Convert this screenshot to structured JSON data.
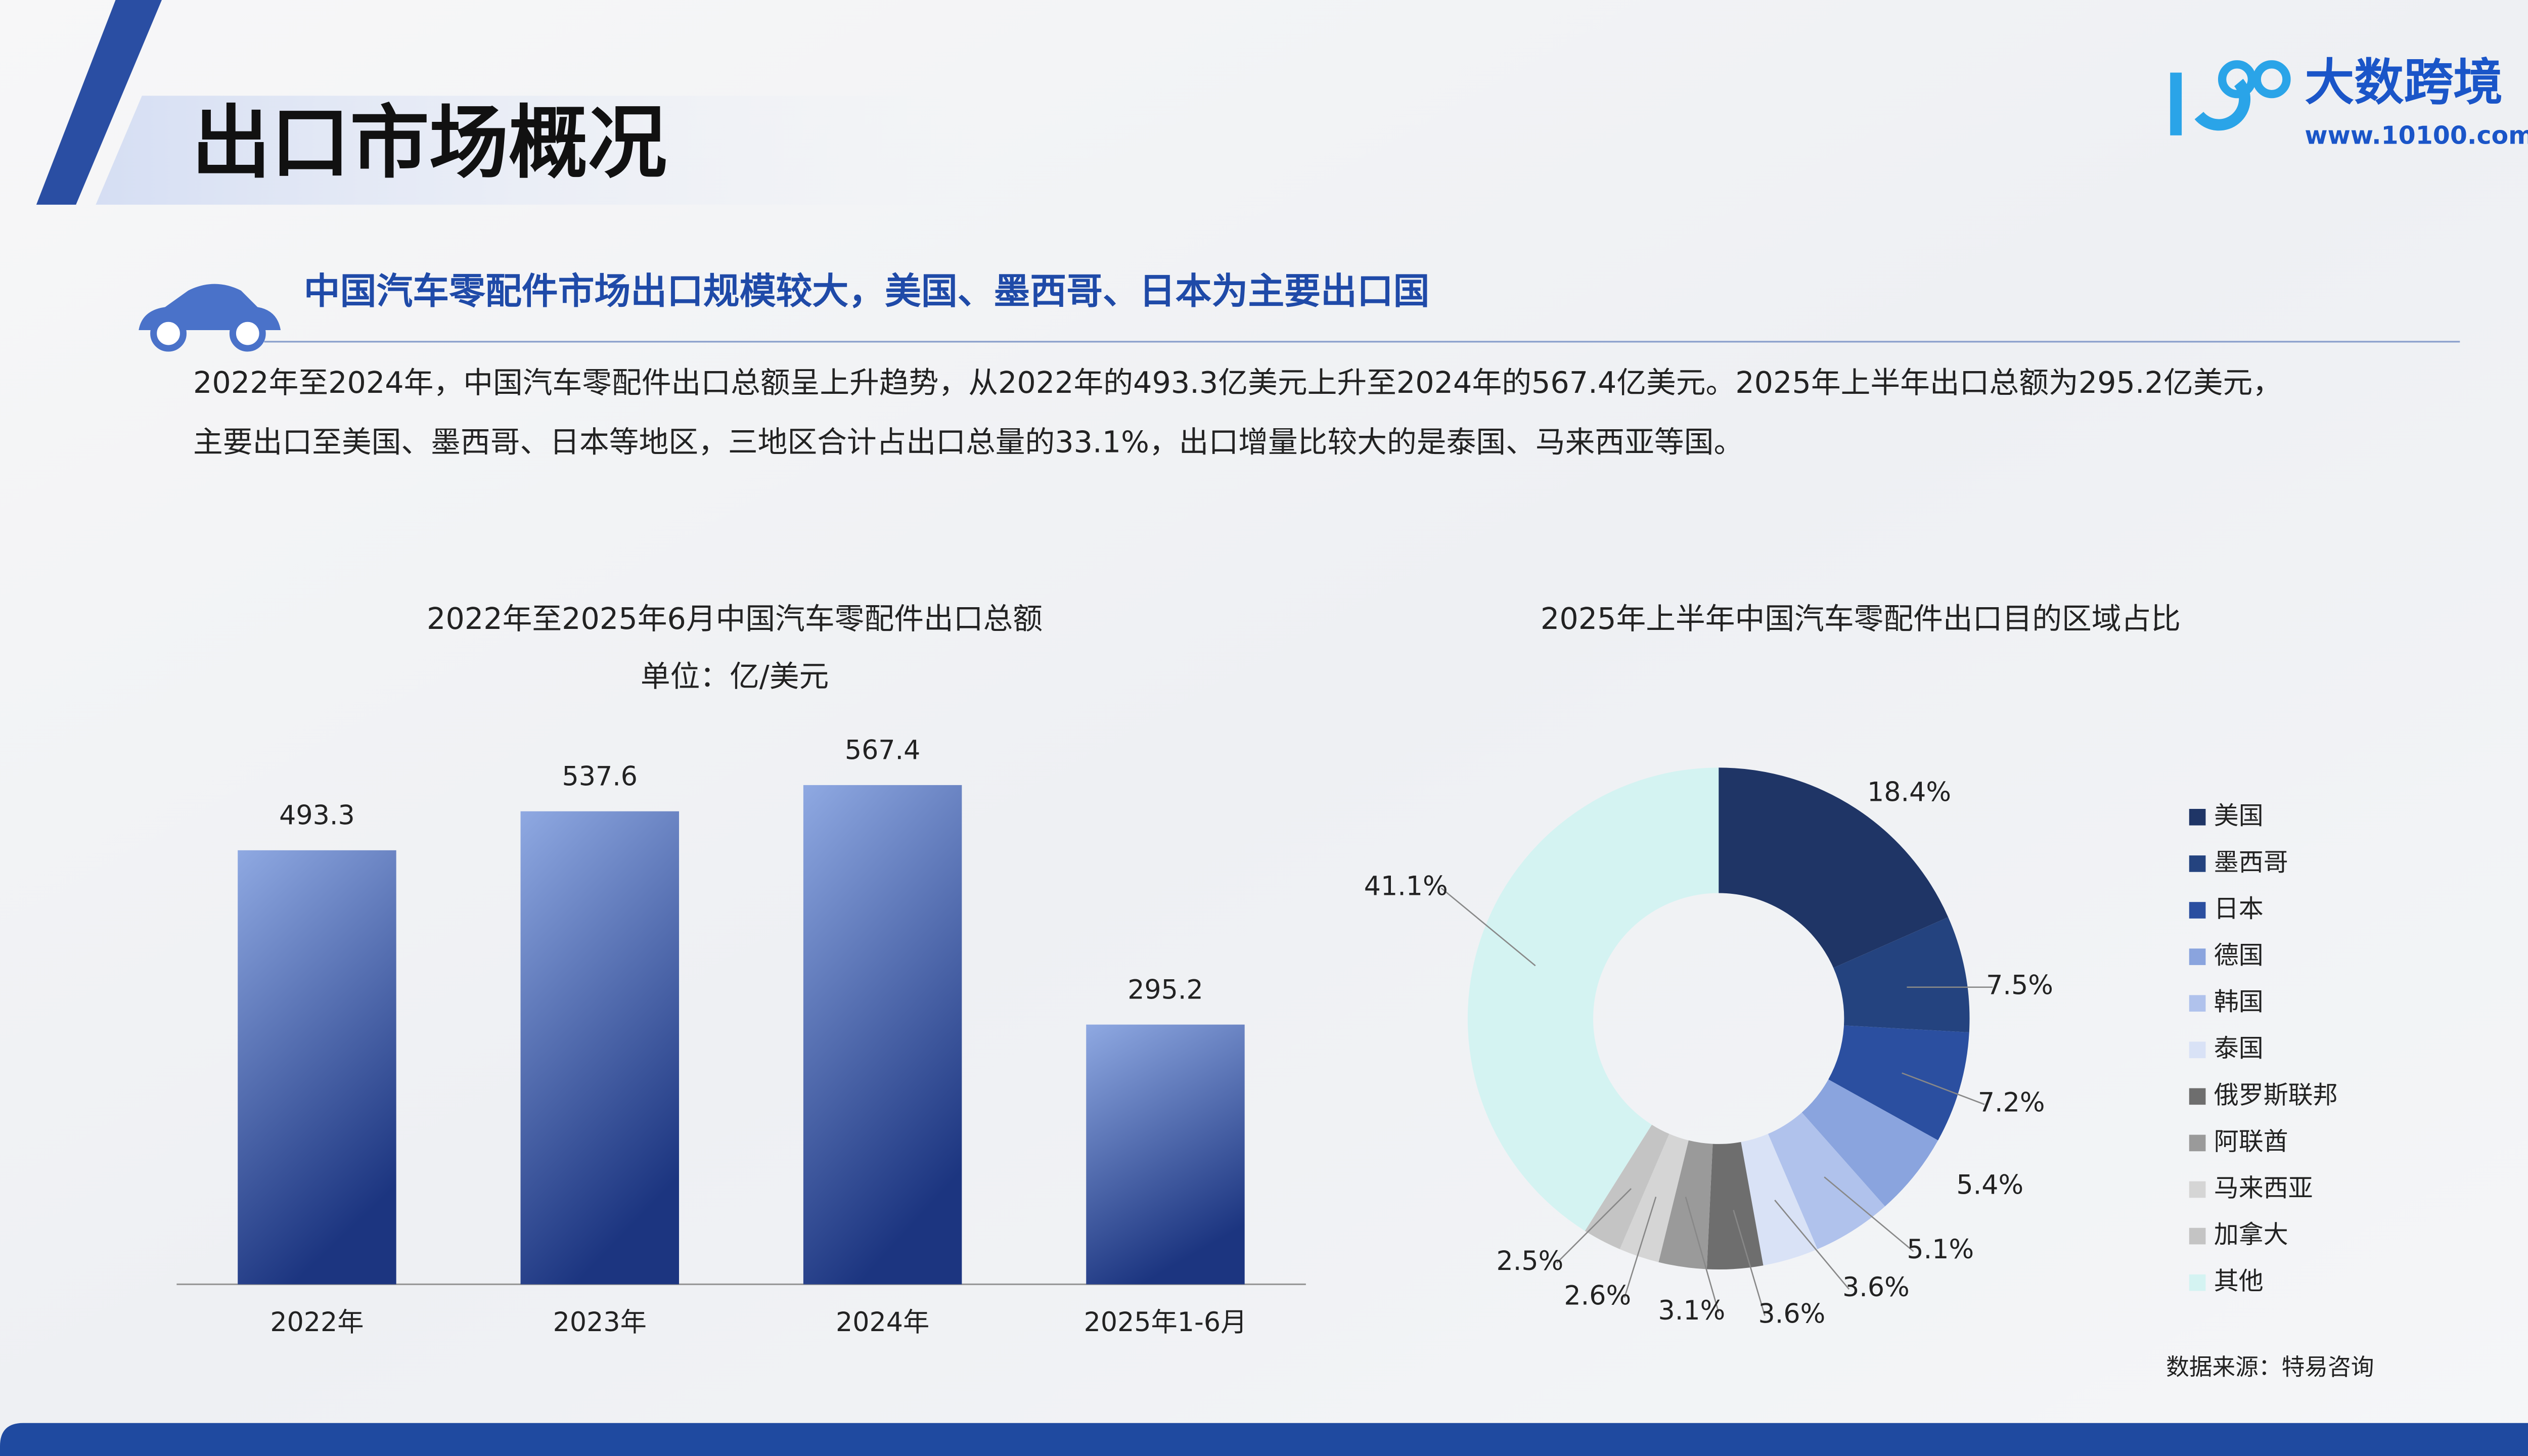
{
  "header": {
    "title": "出口市场概况",
    "subtitle": "中国汽车零配件市场出口规模较大，美国、墨西哥、日本为主要出口国",
    "paragraph": [
      "2022年至2024年，中国汽车零配件出口总额呈上升趋势，从2022年的493.3亿美元上升至2024年的567.4亿美元。2025年上半年出口总额为295.2亿美元，",
      "主要出口至美国、墨西哥、日本等地区，三地区合计占出口总量的33.1%，出口增量比较大的是泰国、马来西亚等国。"
    ],
    "logo": "大数跨境",
    "website": "www.10100.com"
  },
  "source": "数据来源：特易咨询",
  "chart_data": [
    {
      "type": "bar",
      "title": "2022年至2025年6月中国汽车零配件出口总额",
      "subtitle": "单位：亿/美元",
      "categories": [
        "2022年",
        "2023年",
        "2024年",
        "2025年1-6月"
      ],
      "values": [
        493.3,
        537.6,
        567.4,
        295.2
      ],
      "gradient": [
        "#8fa9e2",
        "#1c3580"
      ]
    },
    {
      "type": "donut",
      "title": "2025年上半年中国汽车零配件出口目的区域占比",
      "categories": [
        "美国",
        "墨西哥",
        "日本",
        "德国",
        "韩国",
        "泰国",
        "俄罗斯联邦",
        "阿联酋",
        "马来西亚",
        "加拿大",
        "其他"
      ],
      "values": [
        18.4,
        7.5,
        7.2,
        5.4,
        5.1,
        3.6,
        3.6,
        3.1,
        2.6,
        2.5,
        41.1
      ],
      "value_labels": [
        "18.4%",
        "7.5%",
        "7.2%",
        "5.4%",
        "5.1%",
        "3.6%",
        "3.6%",
        "3.1%",
        "2.6%",
        "2.5%",
        "41.1%"
      ],
      "colors": [
        "#1f3566",
        "#24437f",
        "#2b4fa0",
        "#8aa4de",
        "#b0c2ec",
        "#d9e2f6",
        "#6e6e6e",
        "#9a9a9a",
        "#d5d5d5",
        "#c4c4c4",
        "#d4f3f2"
      ],
      "legend": "right"
    }
  ]
}
